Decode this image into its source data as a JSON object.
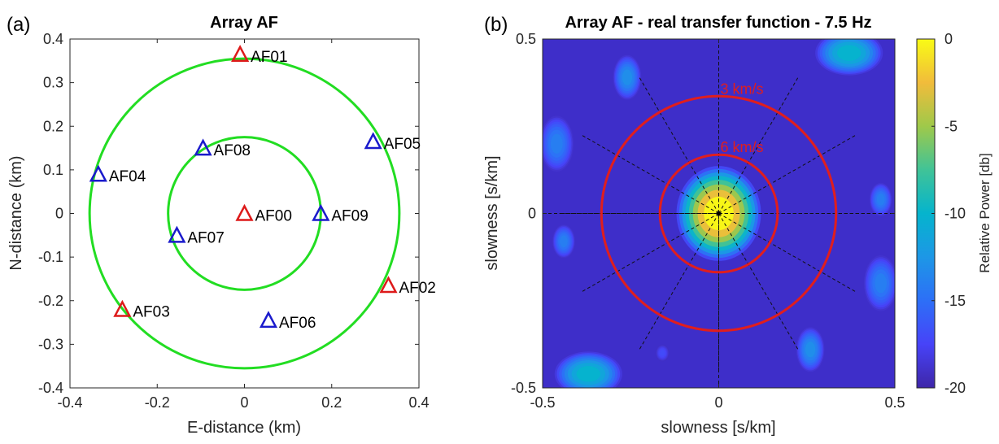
{
  "chart_data": [
    {
      "type": "scatter",
      "panel_label": "(a)",
      "title": "Array AF",
      "xlabel": "E-distance (km)",
      "ylabel": "N-distance (km)",
      "xlim": [
        -0.4,
        0.4
      ],
      "ylim": [
        -0.4,
        0.4
      ],
      "xticks": [
        -0.4,
        -0.2,
        0,
        0.2,
        0.4
      ],
      "xtick_labels": [
        "-0.4",
        "-0.2",
        "0",
        "0.2",
        "0.4"
      ],
      "yticks": [
        0.4,
        0.3,
        0.2,
        0.1,
        0,
        -0.1,
        -0.2,
        -0.3,
        -0.4
      ],
      "ytick_labels": [
        "0.4",
        "0.3",
        "0.2",
        "0.1",
        "0",
        "-0.1",
        "-0.2",
        "-0.3",
        "-0.4"
      ],
      "circles": [
        {
          "radius": 0.175,
          "color": "#22dd22"
        },
        {
          "radius": 0.355,
          "color": "#22dd22"
        }
      ],
      "stations": [
        {
          "name": "AF00",
          "x": 0.0,
          "y": 0.0,
          "color": "#dd1a1a"
        },
        {
          "name": "AF01",
          "x": -0.01,
          "y": 0.365,
          "color": "#dd1a1a"
        },
        {
          "name": "AF02",
          "x": 0.33,
          "y": -0.165,
          "color": "#dd1a1a"
        },
        {
          "name": "AF03",
          "x": -0.28,
          "y": -0.22,
          "color": "#dd1a1a"
        },
        {
          "name": "AF04",
          "x": -0.335,
          "y": 0.09,
          "color": "#1a1acc"
        },
        {
          "name": "AF05",
          "x": 0.295,
          "y": 0.165,
          "color": "#1a1acc"
        },
        {
          "name": "AF06",
          "x": 0.055,
          "y": -0.245,
          "color": "#1a1acc"
        },
        {
          "name": "AF07",
          "x": -0.155,
          "y": -0.05,
          "color": "#1a1acc"
        },
        {
          "name": "AF08",
          "x": -0.095,
          "y": 0.15,
          "color": "#1a1acc"
        },
        {
          "name": "AF09",
          "x": 0.175,
          "y": 0.0,
          "color": "#1a1acc"
        }
      ]
    },
    {
      "type": "heatmap",
      "panel_label": "(b)",
      "title": "Array AF - real transfer function - 7.5 Hz",
      "xlabel": "slowness [s/km]",
      "ylabel": "slowness [s/km]",
      "xlim": [
        -0.5,
        0.5
      ],
      "ylim": [
        -0.5,
        0.5
      ],
      "xticks": [
        -0.5,
        0,
        0.5
      ],
      "xtick_labels": [
        "-0.5",
        "0",
        "0.5"
      ],
      "yticks": [
        0.5,
        0,
        -0.5
      ],
      "ytick_labels": [
        "0.5",
        "0",
        "-0.5"
      ],
      "colorbar": {
        "label": "Relative Power [db]",
        "range": [
          -20,
          0
        ],
        "ticks": [
          0,
          -5,
          -10,
          -15,
          -20
        ],
        "tick_labels": [
          "0",
          "-5",
          "-10",
          "-15",
          "-20"
        ],
        "colormap": "parula"
      },
      "velocity_circles": [
        {
          "label": "3 km/s",
          "radius": 0.333,
          "color": "#e01e1e"
        },
        {
          "label": "6 km/s",
          "radius": 0.167,
          "color": "#e01e1e"
        }
      ],
      "background_db": -19.5,
      "peaks": [
        {
          "x": 0.0,
          "y": 0.0,
          "db": 0,
          "sx": 0.075,
          "sy": 0.085
        },
        {
          "x": 0.37,
          "y": 0.46,
          "db": -10,
          "sx": 0.06,
          "sy": 0.04
        },
        {
          "x": -0.37,
          "y": -0.46,
          "db": -10,
          "sx": 0.06,
          "sy": 0.04
        },
        {
          "x": -0.26,
          "y": 0.39,
          "db": -13,
          "sx": 0.025,
          "sy": 0.04
        },
        {
          "x": 0.26,
          "y": -0.39,
          "db": -13,
          "sx": 0.025,
          "sy": 0.04
        },
        {
          "x": -0.46,
          "y": 0.2,
          "db": -14,
          "sx": 0.03,
          "sy": 0.05
        },
        {
          "x": 0.46,
          "y": -0.2,
          "db": -14,
          "sx": 0.03,
          "sy": 0.05
        },
        {
          "x": 0.46,
          "y": 0.04,
          "db": -14,
          "sx": 0.02,
          "sy": 0.03
        },
        {
          "x": -0.44,
          "y": -0.08,
          "db": -14,
          "sx": 0.02,
          "sy": 0.03
        },
        {
          "x": -0.16,
          "y": -0.4,
          "db": -17,
          "sx": 0.012,
          "sy": 0.015
        }
      ]
    }
  ]
}
